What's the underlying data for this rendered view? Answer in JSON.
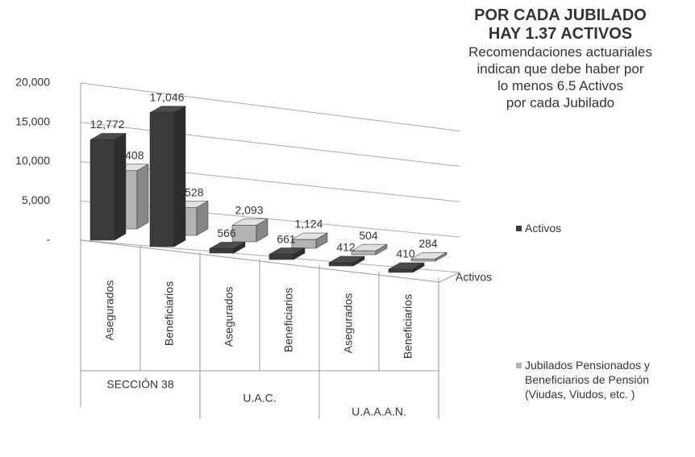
{
  "chart_data": {
    "type": "bar3d",
    "title": [
      "POR CADA JUBILADO",
      "HAY 1.37 ACTIVOS"
    ],
    "subtitle": [
      "Recomendaciones actuariales",
      "indican que debe haber por",
      "lo menos 6.5 Activos",
      "por cada Jubilado"
    ],
    "categories": [
      "Asegurados",
      "Beneficiarios",
      "Asegurados",
      "Beneficiarios",
      "Asegurados",
      "Beneficiarios"
    ],
    "groups": [
      "SECCIÓN 38",
      "U.A.C.",
      "U.A.A.A.N."
    ],
    "depth_label": "Activos",
    "series": [
      {
        "name": "Jubilados Pensionados y Beneficiarios de Pensión (Viudas, Viudos, etc. )",
        "color": "#b4b4b4",
        "values": [
          7408,
          3528,
          2093,
          1124,
          504,
          284
        ],
        "value_labels": [
          "7,408",
          "3,528",
          "2,093",
          "1,124",
          "504",
          "284"
        ]
      },
      {
        "name": "Activos",
        "color": "#3c3c3c",
        "values": [
          12772,
          17046,
          566,
          661,
          412,
          410
        ],
        "value_labels": [
          "12,772",
          "17,046",
          "566",
          "661",
          "412",
          "410"
        ]
      }
    ],
    "ylim": [
      0,
      20000
    ],
    "yticks": [
      {
        "value": 0,
        "label": "-"
      },
      {
        "value": 5000,
        "label": "5,000"
      },
      {
        "value": 10000,
        "label": "10,000"
      },
      {
        "value": 15000,
        "label": "15,000"
      },
      {
        "value": 20000,
        "label": "20,000"
      }
    ],
    "grid": true
  }
}
